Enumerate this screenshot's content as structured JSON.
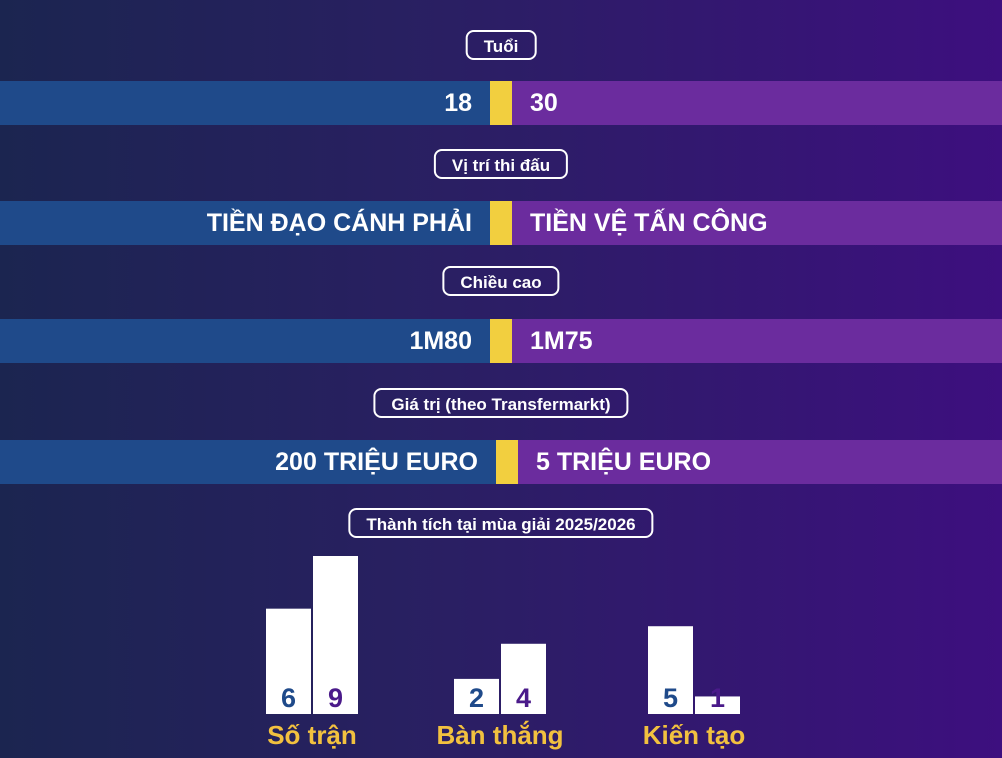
{
  "comparisons": [
    {
      "title": "Tuổi",
      "left": "18",
      "right": "30"
    },
    {
      "title": "Vị trí thi đấu",
      "left": "TIỀN ĐẠO CÁNH PHẢI",
      "right": "TIỀN VỆ TẤN CÔNG"
    },
    {
      "title": "Chiều cao",
      "left": "1M80",
      "right": "1M75"
    },
    {
      "title": "Giá trị (theo Transfermarkt)",
      "left": "200 TRIỆU EURO",
      "right": "5 TRIỆU EURO"
    }
  ],
  "achievements_title": "Thành tích tại mùa giải 2025/2026",
  "colors": {
    "left_bar": "#1f4a8a",
    "right_bar": "#6b2c9e",
    "center_bar": "#f2cf3f",
    "left_value_text": "#1f4a8a",
    "right_value_text": "#4a1a8a",
    "category_label": "#f2c13f"
  },
  "chart_data": {
    "type": "bar",
    "title": "Thành tích tại mùa giải 2025/2026",
    "categories": [
      "Số trận",
      "Bàn thắng",
      "Kiến tạo"
    ],
    "series": [
      {
        "values": [
          6,
          2,
          5
        ]
      },
      {
        "values": [
          9,
          4,
          1
        ]
      }
    ],
    "data_labels": true,
    "ylim": [
      0,
      9
    ]
  }
}
